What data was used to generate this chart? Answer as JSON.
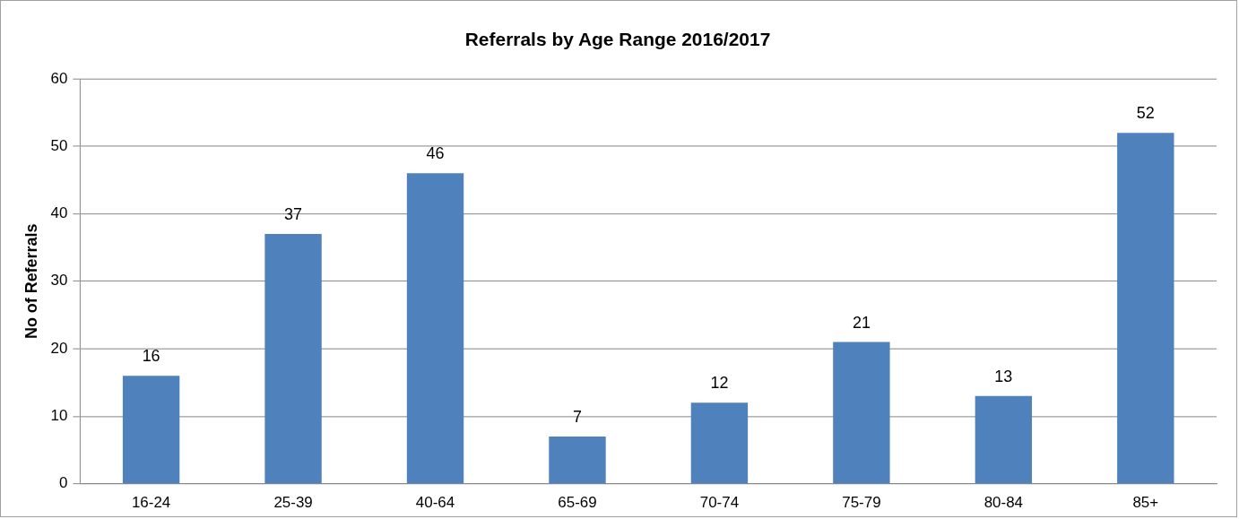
{
  "chart_data": {
    "type": "bar",
    "title": "Referrals by Age Range 2016/2017",
    "ylabel": "No of Referrals",
    "categories": [
      "16-24",
      "25-39",
      "40-64",
      "65-69",
      "70-74",
      "75-79",
      "80-84",
      "85+"
    ],
    "values": [
      16,
      37,
      46,
      7,
      12,
      21,
      13,
      52
    ],
    "color": "#4f81bd",
    "ylim": [
      0,
      60
    ],
    "yticks": [
      0,
      10,
      20,
      30,
      40,
      50,
      60
    ],
    "grid": "y",
    "legend": false,
    "data_labels": true
  }
}
